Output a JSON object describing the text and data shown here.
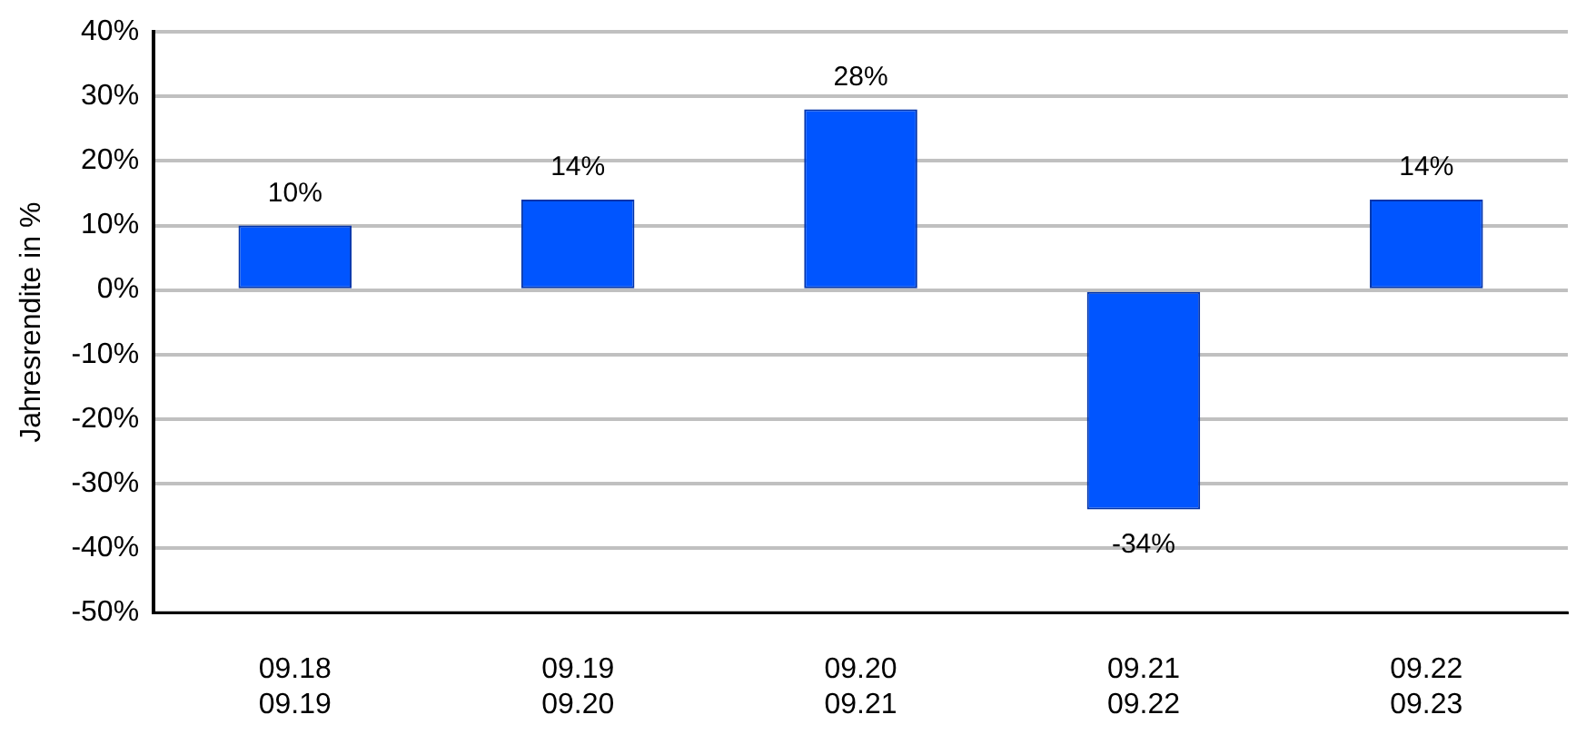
{
  "chart_data": {
    "type": "bar",
    "ylabel": "Jahresrendite in %",
    "categories": [
      "09.18\n09.19",
      "09.19\n09.20",
      "09.20\n09.21",
      "09.21\n09.22",
      "09.22\n09.23"
    ],
    "values": [
      10,
      14,
      28,
      -34,
      14
    ],
    "value_labels": [
      "10%",
      "14%",
      "28%",
      "-34%",
      "14%"
    ],
    "color": "#0055ff",
    "ylim": [
      -50,
      40
    ],
    "yticks": [
      {
        "value": -50,
        "label": "-50%"
      },
      {
        "value": -40,
        "label": "-40%"
      },
      {
        "value": -30,
        "label": "-30%"
      },
      {
        "value": -20,
        "label": "-20%"
      },
      {
        "value": -10,
        "label": "-10%"
      },
      {
        "value": 0,
        "label": "0%"
      },
      {
        "value": 10,
        "label": "10%"
      },
      {
        "value": 20,
        "label": "20%"
      },
      {
        "value": 30,
        "label": "30%"
      },
      {
        "value": 40,
        "label": "40%"
      }
    ],
    "grid": "y",
    "legend": false
  }
}
